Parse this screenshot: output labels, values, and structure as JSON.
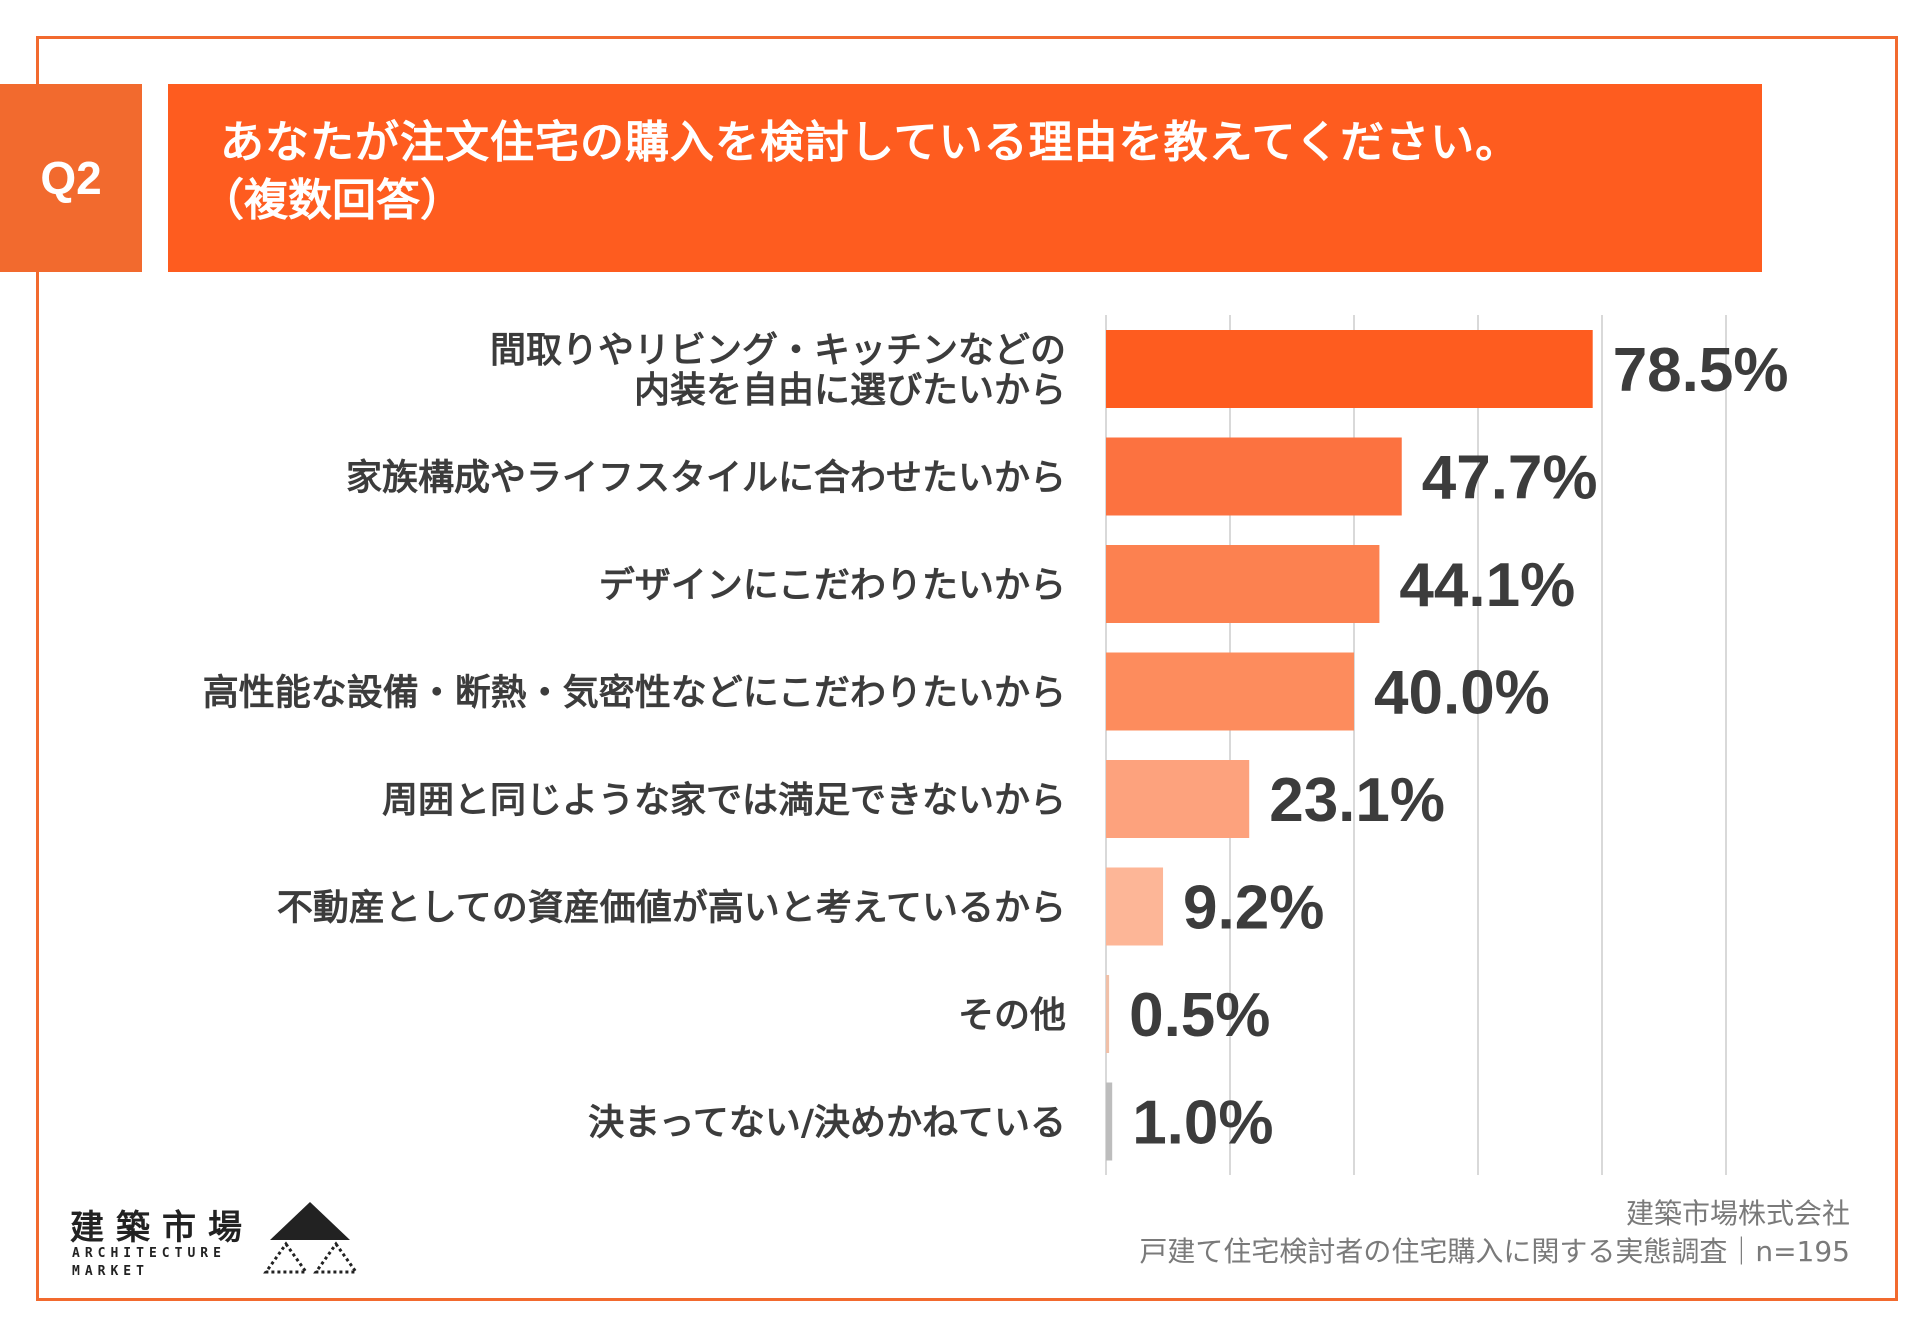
{
  "question": {
    "badge": "Q2",
    "title": "あなたが注文住宅の購入を検討している理由を教えてください。",
    "subtitle": "（複数回答）"
  },
  "colors": {
    "frame": "#f26a2e",
    "banner": "#fe5c1f",
    "bars": [
      "#fe5c1f",
      "#fc7240",
      "#fc8150",
      "#fd8c5d",
      "#fda27d",
      "#fdb697",
      "#f0c0a8",
      "#bdbdbd"
    ]
  },
  "chart_data": {
    "type": "bar",
    "orientation": "horizontal",
    "unit": "%",
    "categories": [
      [
        "間取りやリビング・キッチンなどの",
        "内装を自由に選びたいから"
      ],
      [
        "家族構成やライフスタイルに合わせたいから"
      ],
      [
        "デザインにこだわりたいから"
      ],
      [
        "高性能な設備・断熱・気密性などにこだわりたいから"
      ],
      [
        "周囲と同じような家では満足できないから"
      ],
      [
        "不動産としての資産価値が高いと考えているから"
      ],
      [
        "その他"
      ],
      [
        "決まってない/決めかねている"
      ]
    ],
    "values": [
      78.5,
      47.7,
      44.1,
      40.0,
      23.1,
      9.2,
      0.5,
      1.0
    ],
    "value_labels": [
      "78.5%",
      "47.7%",
      "44.1%",
      "40.0%",
      "23.1%",
      "9.2%",
      "0.5%",
      "1.0%"
    ],
    "xlim": [
      0,
      100
    ],
    "gridlines": [
      0,
      20,
      40,
      60,
      80,
      100
    ],
    "grid": true
  },
  "logo": {
    "jp": "建築市場",
    "en_line1": "ARCHITECTURE",
    "en_line2": "MARKET"
  },
  "source": {
    "company": "建築市場株式会社",
    "survey": "戸建て住宅検討者の住宅購入に関する実態調査｜n=195"
  }
}
